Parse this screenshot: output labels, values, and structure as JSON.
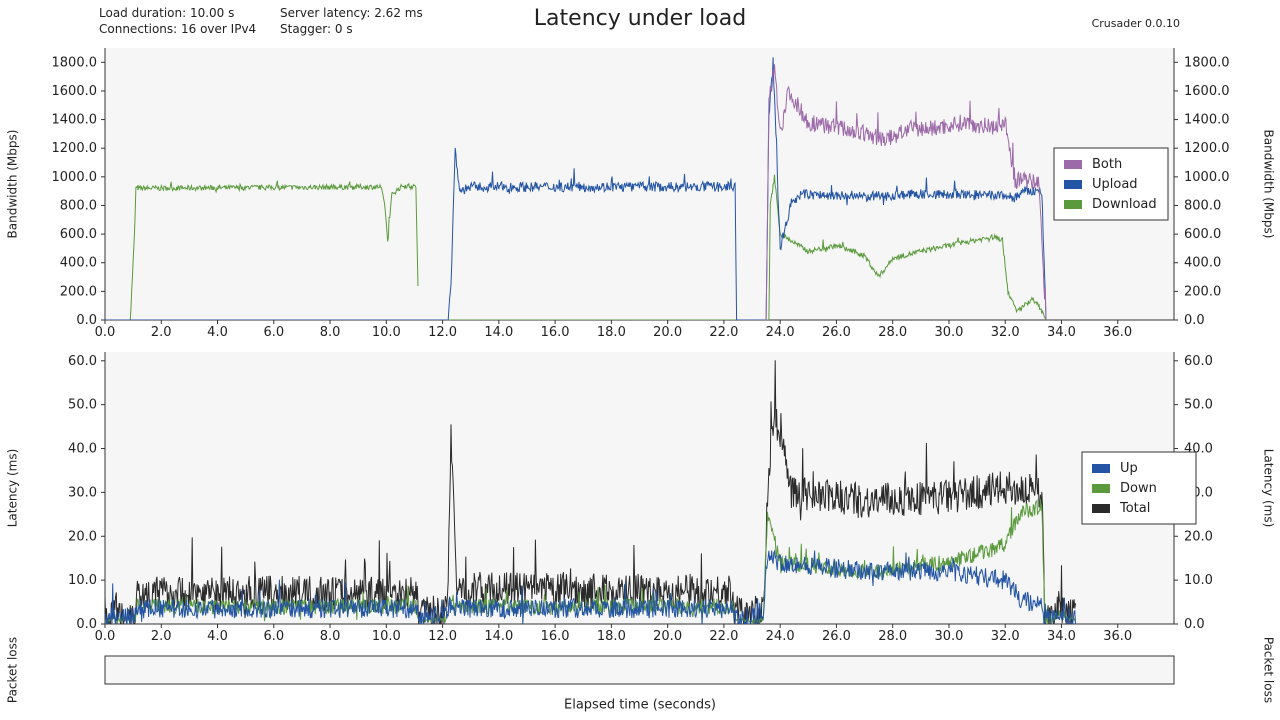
{
  "header": {
    "left_line1": "Load duration: 10.00 s",
    "left_line2": "Connections: 16 over IPv4",
    "mid_line1": "Server latency: 2.62 ms",
    "mid_line2": "Stagger: 0 s",
    "title": "Latency under load",
    "version": "Crusader 0.0.10"
  },
  "colors": {
    "both": "#9c6aa8",
    "upload": "#2454a4",
    "download": "#5a9a3c",
    "total": "#2a2a2a",
    "plot_bg": "#f6f6f6"
  },
  "chart_data": [
    {
      "type": "line",
      "ylabel": "Bandwidth (Mbps)",
      "y2label": "Bandwidth (Mbps)",
      "xlim": [
        0,
        38
      ],
      "ylim": [
        0,
        1900
      ],
      "xticks": [
        0,
        2,
        4,
        6,
        8,
        10,
        12,
        14,
        16,
        18,
        20,
        22,
        24,
        26,
        28,
        30,
        32,
        34,
        36
      ],
      "yticks": [
        0,
        200,
        400,
        600,
        800,
        1000,
        1200,
        1400,
        1600,
        1800
      ],
      "legend": [
        "Both",
        "Upload",
        "Download"
      ],
      "legend_position": "right",
      "series": [
        {
          "name": "Download",
          "color_key": "download",
          "segments": [
            {
              "x": [
                0.9,
                1.05,
                1.1,
                9.8,
                9.95,
                10.05,
                10.2,
                10.6,
                11.05,
                11.15
              ],
              "y": [
                0,
                600,
                920,
                930,
                800,
                540,
                880,
                940,
                930,
                0
              ]
            },
            {
              "x": [
                11.15,
                23.6
              ],
              "y": [
                0,
                0
              ]
            },
            {
              "x": [
                23.6,
                23.65,
                23.8,
                24.0,
                25.0,
                26.0,
                27.0,
                27.5,
                28.0,
                29.0,
                30.0,
                31.0,
                31.6,
                31.9,
                32.1,
                32.4,
                33.0,
                33.3,
                33.45
              ],
              "y": [
                0,
                800,
                1000,
                600,
                480,
                520,
                450,
                300,
                430,
                480,
                520,
                560,
                580,
                560,
                200,
                60,
                150,
                60,
                0
              ]
            }
          ],
          "noise": 18
        },
        {
          "name": "Upload",
          "color_key": "upload",
          "segments": [
            {
              "x": [
                0,
                12.2
              ],
              "y": [
                0,
                0
              ]
            },
            {
              "x": [
                12.2,
                12.3,
                12.45,
                12.6,
                13.0,
                22.4,
                22.45
              ],
              "y": [
                0,
                250,
                1200,
                900,
                930,
                930,
                0
              ]
            },
            {
              "x": [
                22.45,
                23.5
              ],
              "y": [
                0,
                0
              ]
            },
            {
              "x": [
                23.5,
                23.6,
                23.75,
                24.0,
                24.4,
                24.8,
                25.5,
                27.0,
                29.0,
                31.0,
                32.0,
                32.3,
                32.7,
                33.3,
                33.45
              ],
              "y": [
                0,
                1400,
                1800,
                500,
                820,
                880,
                870,
                860,
                880,
                870,
                870,
                850,
                900,
                900,
                0
              ]
            }
          ],
          "noise": 35
        },
        {
          "name": "Both",
          "color_key": "both",
          "segments": [
            {
              "x": [
                23.5,
                23.6,
                23.8,
                24.0,
                24.3,
                25.0,
                26.0,
                27.0,
                27.8,
                28.5,
                29.5,
                30.5,
                31.5,
                32.0,
                32.15,
                32.35,
                33.2,
                33.45
              ],
              "y": [
                0,
                1500,
                1800,
                1300,
                1600,
                1380,
                1350,
                1300,
                1260,
                1330,
                1340,
                1380,
                1350,
                1380,
                1200,
                980,
                960,
                0
              ]
            }
          ],
          "noise": 60
        }
      ]
    },
    {
      "type": "line",
      "ylabel": "Latency (ms)",
      "y2label": "Latency (ms)",
      "xlabel": "Elapsed time (seconds)",
      "xlim": [
        0,
        38
      ],
      "ylim": [
        0,
        62
      ],
      "xticks": [
        0,
        2,
        4,
        6,
        8,
        10,
        12,
        14,
        16,
        18,
        20,
        22,
        24,
        26,
        28,
        30,
        32,
        34,
        36
      ],
      "yticks": [
        0,
        10,
        20,
        30,
        40,
        50,
        60
      ],
      "legend": [
        "Up",
        "Down",
        "Total"
      ],
      "legend_position": "right",
      "series": [
        {
          "name": "Total",
          "color_key": "total",
          "points": [
            [
              0,
              2.5
            ],
            [
              1.05,
              2.5
            ],
            [
              1.15,
              7
            ],
            [
              5,
              7
            ],
            [
              10,
              7
            ],
            [
              11.05,
              7
            ],
            [
              11.15,
              2.5
            ],
            [
              12.1,
              2.5
            ],
            [
              12.2,
              10
            ],
            [
              12.3,
              42
            ],
            [
              12.5,
              8
            ],
            [
              17,
              7.5
            ],
            [
              22.3,
              7.5
            ],
            [
              22.4,
              2.5
            ],
            [
              23.4,
              2.5
            ],
            [
              23.55,
              30
            ],
            [
              23.8,
              48
            ],
            [
              24.5,
              30
            ],
            [
              27,
              28
            ],
            [
              30,
              29
            ],
            [
              32,
              31
            ],
            [
              33.3,
              30
            ],
            [
              33.4,
              3
            ],
            [
              34.5,
              2
            ]
          ],
          "noise": 4
        },
        {
          "name": "Down",
          "color_key": "download",
          "points": [
            [
              0,
              1
            ],
            [
              1.05,
              1
            ],
            [
              1.15,
              4
            ],
            [
              11.05,
              4
            ],
            [
              11.15,
              1
            ],
            [
              12.1,
              1
            ],
            [
              12.3,
              6
            ],
            [
              12.5,
              4
            ],
            [
              22.3,
              4
            ],
            [
              22.4,
              1
            ],
            [
              23.4,
              1
            ],
            [
              23.55,
              25
            ],
            [
              24,
              14
            ],
            [
              27,
              12
            ],
            [
              30,
              14
            ],
            [
              32,
              18
            ],
            [
              32.5,
              25
            ],
            [
              33.3,
              27
            ],
            [
              33.4,
              2
            ],
            [
              34.5,
              1
            ]
          ],
          "noise": 1.8
        },
        {
          "name": "Up",
          "color_key": "upload",
          "points": [
            [
              0,
              1.5
            ],
            [
              1.05,
              1.5
            ],
            [
              1.15,
              3.5
            ],
            [
              11.05,
              3.5
            ],
            [
              11.15,
              1.5
            ],
            [
              12.1,
              1.5
            ],
            [
              12.3,
              5
            ],
            [
              12.5,
              3.5
            ],
            [
              22.3,
              3.5
            ],
            [
              22.4,
              1.5
            ],
            [
              23.4,
              1.5
            ],
            [
              23.55,
              16
            ],
            [
              24,
              14
            ],
            [
              27,
              12
            ],
            [
              30,
              12
            ],
            [
              32,
              10
            ],
            [
              32.5,
              6
            ],
            [
              33.3,
              4
            ],
            [
              33.4,
              1.5
            ],
            [
              34.5,
              1.5
            ]
          ],
          "noise": 2.2
        }
      ]
    }
  ],
  "packet_loss": {
    "label_left": "Packet loss",
    "label_right": "Packet loss"
  }
}
